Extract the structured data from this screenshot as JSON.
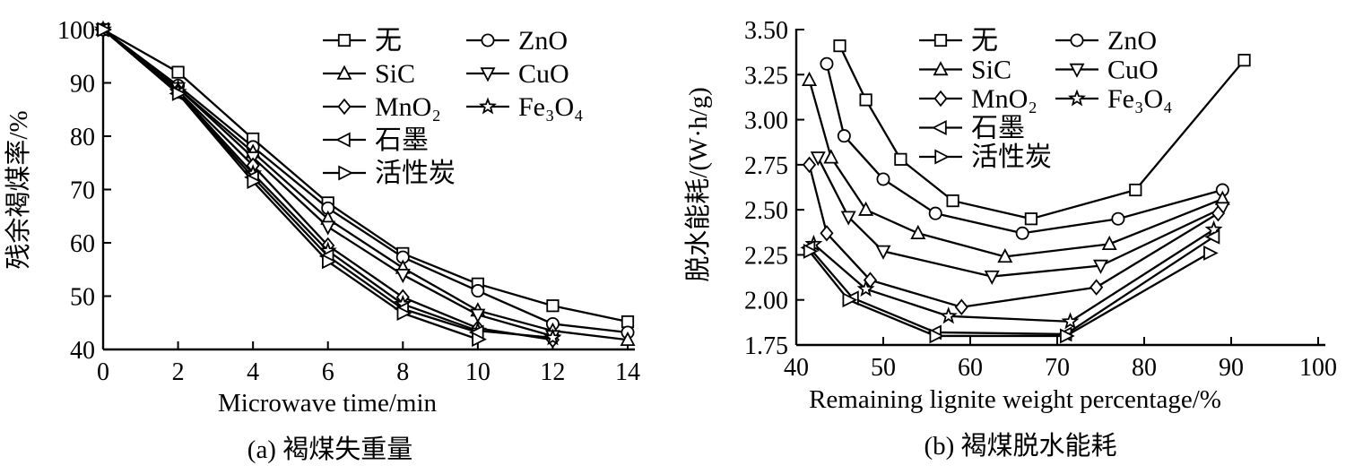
{
  "figure": {
    "panels": [
      {
        "id": "a",
        "caption": "(a) 褐煤失重量",
        "xlabel": "Microwave time/min",
        "ylabel": "残余褐煤率/%"
      },
      {
        "id": "b",
        "caption": "(b) 褐煤脱水能耗",
        "xlabel": "Remaining lignite weight percentage/%",
        "ylabel": "脱水能耗/(W·h/g)"
      }
    ],
    "line_color": "#000000",
    "background_color": "#ffffff"
  },
  "chart_data": [
    {
      "type": "line",
      "title": "",
      "xlabel": "Microwave time/min",
      "ylabel": "残余褐煤率/%",
      "xlim": [
        0,
        14
      ],
      "ylim": [
        40,
        100
      ],
      "xticks": [
        0,
        2,
        4,
        6,
        8,
        10,
        12,
        14
      ],
      "yticks": [
        40,
        50,
        60,
        70,
        80,
        90,
        100
      ],
      "grid": false,
      "legend_position": "inside upper right, two columns",
      "legend_columns": [
        [
          "无",
          "SiC",
          "MnO₂",
          "石墨",
          "活性炭"
        ],
        [
          "ZnO",
          "CuO",
          "Fe₃O₄"
        ]
      ],
      "series": [
        {
          "name": "无",
          "marker": "square",
          "x": [
            0,
            2,
            4,
            6,
            8,
            10,
            12,
            14
          ],
          "y": [
            100,
            92,
            79.5,
            67.5,
            58,
            52.3,
            48.2,
            45.2
          ]
        },
        {
          "name": "ZnO",
          "marker": "circle",
          "x": [
            0,
            2,
            4,
            6,
            8,
            10,
            12,
            14
          ],
          "y": [
            100,
            89.5,
            78,
            66.5,
            57.3,
            51,
            44.8,
            43.2
          ]
        },
        {
          "name": "SiC",
          "marker": "triangle-up",
          "x": [
            0,
            2,
            4,
            6,
            8,
            10,
            12,
            14
          ],
          "y": [
            100,
            89,
            77,
            64.5,
            55.3,
            47.3,
            43.5,
            41.8
          ]
        },
        {
          "name": "CuO",
          "marker": "triangle-down",
          "x": [
            0,
            2,
            4,
            6,
            8,
            10,
            12
          ],
          "y": [
            100,
            89,
            76,
            63,
            54,
            46.5,
            42.5
          ]
        },
        {
          "name": "MnO₂",
          "marker": "diamond",
          "x": [
            0,
            2,
            4,
            6,
            8,
            10,
            12
          ],
          "y": [
            100,
            88.5,
            74.5,
            59.5,
            49.8,
            44,
            41.8
          ]
        },
        {
          "name": "Fe₃O₄",
          "marker": "star",
          "x": [
            0,
            2,
            4,
            6,
            8,
            10,
            12
          ],
          "y": [
            100,
            88.3,
            73,
            58.5,
            48.5,
            43.5,
            42.2
          ]
        },
        {
          "name": "石墨",
          "marker": "triangle-left",
          "x": [
            0,
            2,
            4,
            6,
            8,
            10
          ],
          "y": [
            100,
            88,
            72.3,
            57.5,
            47.6,
            43.2
          ]
        },
        {
          "name": "活性炭",
          "marker": "triangle-right",
          "x": [
            0,
            2,
            4,
            6,
            8,
            10
          ],
          "y": [
            100,
            88,
            71.5,
            56.5,
            46.8,
            41.9
          ]
        }
      ]
    },
    {
      "type": "line",
      "title": "",
      "xlabel": "Remaining lignite weight percentage/%",
      "ylabel": "脱水能耗/(W·h/g)",
      "xlim": [
        40,
        100
      ],
      "ylim": [
        1.75,
        3.5
      ],
      "xticks": [
        40,
        50,
        60,
        70,
        80,
        90,
        100
      ],
      "yticks": [
        1.75,
        2.0,
        2.25,
        2.5,
        2.75,
        3.0,
        3.25,
        3.5
      ],
      "grid": false,
      "legend_position": "inside upper middle, two columns",
      "legend_columns": [
        [
          "无",
          "SiC",
          "MnO₂",
          "石墨",
          "活性炭"
        ],
        [
          "ZnO",
          "CuO",
          "Fe₃O₄"
        ]
      ],
      "series": [
        {
          "name": "无",
          "marker": "square",
          "x": [
            45,
            48,
            52,
            58,
            67,
            79,
            91.5
          ],
          "y": [
            3.41,
            3.11,
            2.78,
            2.55,
            2.45,
            2.61,
            3.33
          ]
        },
        {
          "name": "ZnO",
          "marker": "circle",
          "x": [
            43.5,
            45.5,
            50,
            56,
            66,
            77,
            89
          ],
          "y": [
            3.31,
            2.91,
            2.67,
            2.48,
            2.37,
            2.45,
            2.61
          ]
        },
        {
          "name": "SiC",
          "marker": "triangle-up",
          "x": [
            41.5,
            44,
            48,
            54,
            64,
            76,
            89
          ],
          "y": [
            3.22,
            2.79,
            2.5,
            2.37,
            2.24,
            2.31,
            2.56
          ]
        },
        {
          "name": "CuO",
          "marker": "triangle-down",
          "x": [
            42.5,
            46,
            50,
            62.5,
            75,
            89
          ],
          "y": [
            2.79,
            2.46,
            2.27,
            2.13,
            2.19,
            2.51
          ]
        },
        {
          "name": "MnO₂",
          "marker": "diamond",
          "x": [
            41.5,
            43.5,
            48.5,
            59,
            74.5,
            88.5
          ],
          "y": [
            2.75,
            2.37,
            2.11,
            1.96,
            2.07,
            2.48
          ]
        },
        {
          "name": "Fe₃O₄",
          "marker": "star",
          "x": [
            42,
            48,
            57.5,
            71.5,
            88
          ],
          "y": [
            2.31,
            2.06,
            1.91,
            1.88,
            2.39
          ]
        },
        {
          "name": "石墨",
          "marker": "triangle-left",
          "x": [
            41.5,
            46.5,
            56,
            71,
            88
          ],
          "y": [
            2.29,
            2.01,
            1.82,
            1.81,
            2.35
          ]
        },
        {
          "name": "活性炭",
          "marker": "triangle-right",
          "x": [
            41.5,
            46,
            56,
            71,
            87.5
          ],
          "y": [
            2.27,
            2.0,
            1.8,
            1.8,
            2.26
          ]
        }
      ]
    }
  ]
}
